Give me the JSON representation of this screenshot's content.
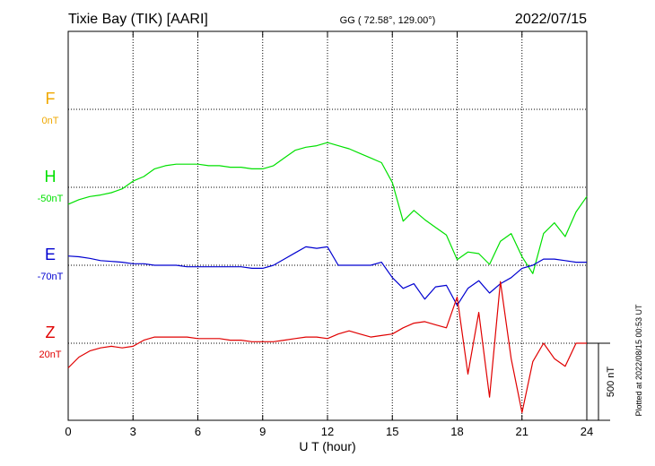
{
  "header": {
    "station": "Tixie Bay (TIK)  [AARI]",
    "coords": "GG ( 72.58°, 129.00°)",
    "date": "2022/07/15"
  },
  "footer": {
    "plotted": "Plotted at 2022/08/15 00:53 UT"
  },
  "chart_data": {
    "type": "line",
    "xlabel": "U T (hour)",
    "xlim": [
      0,
      24
    ],
    "x_ticks": [
      0,
      3,
      6,
      9,
      12,
      15,
      18,
      21,
      24
    ],
    "x_tick_labels": [
      "0",
      "3",
      "6",
      "9",
      "12",
      "15",
      "18",
      "21",
      "24"
    ],
    "grid": true,
    "scale_bar": {
      "value": 500,
      "label": "500 nT"
    },
    "series": [
      {
        "name": "F",
        "baseline": "0nT",
        "color": "#f0a800",
        "x": [],
        "values": []
      },
      {
        "name": "H",
        "baseline": "-50nT",
        "color": "#00e000",
        "x": [
          0,
          0.5,
          1,
          1.5,
          2,
          2.5,
          3,
          3.5,
          4,
          4.5,
          5,
          5.5,
          6,
          6.5,
          7,
          7.5,
          8,
          8.5,
          9,
          9.5,
          10,
          10.5,
          11,
          11.5,
          12,
          12.5,
          13,
          13.5,
          14,
          14.5,
          15,
          15.5,
          16,
          16.5,
          17,
          17.5,
          18,
          18.5,
          19,
          19.5,
          20,
          20.5,
          21,
          21.5,
          22,
          22.5,
          23,
          23.5,
          24
        ],
        "values": [
          -110,
          -80,
          -60,
          -50,
          -35,
          -10,
          40,
          70,
          120,
          140,
          150,
          150,
          150,
          140,
          140,
          130,
          130,
          120,
          120,
          140,
          190,
          240,
          260,
          270,
          290,
          270,
          250,
          220,
          190,
          160,
          30,
          -220,
          -150,
          -210,
          -260,
          -310,
          -470,
          -420,
          -430,
          -500,
          -350,
          -300,
          -450,
          -560,
          -300,
          -230,
          -320,
          -160,
          -60
        ]
      },
      {
        "name": "E",
        "baseline": "-70nT",
        "color": "#0000d0",
        "x": [
          0,
          0.5,
          1,
          1.5,
          2,
          2.5,
          3,
          3.5,
          4,
          4.5,
          5,
          5.5,
          6,
          6.5,
          7,
          7.5,
          8,
          8.5,
          9,
          9.5,
          10,
          10.5,
          11,
          11.5,
          12,
          12.5,
          13,
          13.5,
          14,
          14.5,
          15,
          15.5,
          16,
          16.5,
          17,
          17.5,
          18,
          18.5,
          19,
          19.5,
          20,
          20.5,
          21,
          21.5,
          22,
          22.5,
          23,
          23.5,
          24
        ],
        "values": [
          60,
          55,
          45,
          30,
          25,
          20,
          10,
          10,
          0,
          0,
          0,
          -10,
          -10,
          -10,
          -10,
          -10,
          -10,
          -20,
          -20,
          0,
          40,
          80,
          120,
          110,
          120,
          0,
          0,
          0,
          0,
          20,
          -80,
          -150,
          -120,
          -220,
          -140,
          -130,
          -260,
          -150,
          -100,
          -180,
          -120,
          -80,
          -20,
          0,
          40,
          40,
          30,
          20,
          20
        ]
      },
      {
        "name": "Z",
        "baseline": "20nT",
        "color": "#e00000",
        "x": [
          0,
          0.5,
          1,
          1.5,
          2,
          2.5,
          3,
          3.5,
          4,
          4.5,
          5,
          5.5,
          6,
          6.5,
          7,
          7.5,
          8,
          8.5,
          9,
          9.5,
          10,
          10.5,
          11,
          11.5,
          12,
          12.5,
          13,
          13.5,
          14,
          14.5,
          15,
          15.5,
          16,
          16.5,
          17,
          17.5,
          18,
          18.5,
          19,
          19.5,
          20,
          20.5,
          21,
          21.5,
          22,
          22.5,
          23,
          23.5,
          24
        ],
        "values": [
          -160,
          -90,
          -50,
          -30,
          -20,
          -30,
          -20,
          20,
          40,
          40,
          40,
          40,
          30,
          30,
          30,
          20,
          20,
          10,
          10,
          10,
          20,
          30,
          40,
          40,
          30,
          60,
          80,
          60,
          40,
          50,
          60,
          100,
          130,
          140,
          120,
          100,
          300,
          -200,
          200,
          -350,
          400,
          -100,
          -450,
          -120,
          0,
          -100,
          -150,
          0,
          0
        ]
      }
    ]
  }
}
